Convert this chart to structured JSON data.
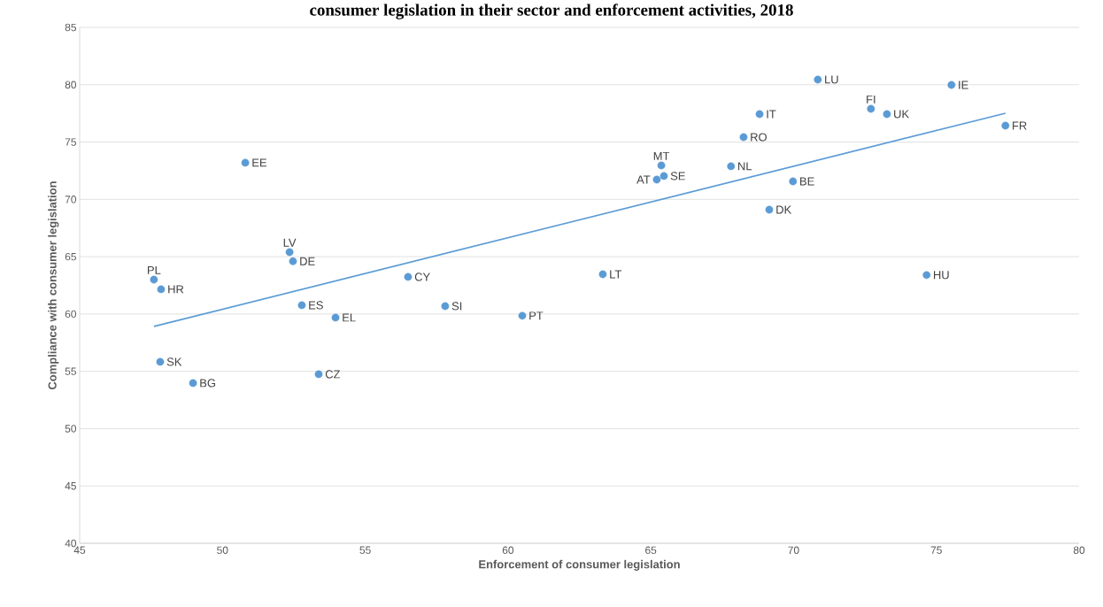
{
  "chart_data": {
    "type": "scatter",
    "title": "consumer legislation in their sector and enforcement activities, 2018",
    "xlabel": "Enforcement of consumer legislation",
    "ylabel": "Compliance with consumer legislation",
    "xlim": [
      45,
      80
    ],
    "xticks": [
      45,
      50,
      55,
      60,
      65,
      70,
      75,
      80
    ],
    "ylim": [
      40,
      85
    ],
    "yticks": [
      40,
      45,
      50,
      55,
      60,
      65,
      70,
      75,
      80,
      85
    ],
    "grid": "y",
    "series": [
      {
        "marker": "circle",
        "color": "#5b9bd5",
        "x": [
          50.8,
          70.85,
          75.53,
          72.71,
          73.27,
          68.81,
          77.42,
          68.25,
          65.37,
          65.46,
          65.21,
          67.81,
          69.98,
          69.15,
          52.35,
          52.47,
          47.6,
          47.85,
          56.5,
          63.32,
          74.66,
          52.78,
          53.96,
          57.8,
          60.5,
          47.82,
          53.37,
          48.97
        ],
        "values": [
          73.2,
          80.45,
          79.98,
          77.9,
          77.44,
          77.44,
          76.43,
          75.43,
          72.96,
          72.04,
          71.73,
          72.89,
          71.57,
          69.1,
          65.4,
          64.6,
          63.0,
          62.16,
          63.24,
          63.47,
          63.4,
          60.77,
          59.69,
          60.69,
          59.85,
          55.83,
          54.75,
          53.98
        ]
      },
      {
        "type": "line",
        "marker": "none",
        "color": "#5b9bd5",
        "x": [
          47.6,
          77.42
        ],
        "values": [
          58.92,
          77.52
        ]
      }
    ],
    "annotations": [
      {
        "text": "EE",
        "x": 50.8,
        "y": 73.2
      },
      {
        "text": "LU",
        "x": 70.85,
        "y": 80.45
      },
      {
        "text": "IE",
        "x": 75.53,
        "y": 79.98
      },
      {
        "text": "FI",
        "x": 72.71,
        "y": 77.9
      },
      {
        "text": "UK",
        "x": 73.27,
        "y": 77.44
      },
      {
        "text": "IT",
        "x": 68.81,
        "y": 77.44
      },
      {
        "text": "FR",
        "x": 77.42,
        "y": 76.43
      },
      {
        "text": "RO",
        "x": 68.25,
        "y": 75.43
      },
      {
        "text": "MT",
        "x": 65.37,
        "y": 72.96
      },
      {
        "text": "SE",
        "x": 65.46,
        "y": 72.04
      },
      {
        "text": "AT",
        "x": 65.21,
        "y": 71.73
      },
      {
        "text": "NL",
        "x": 67.81,
        "y": 72.89
      },
      {
        "text": "BE",
        "x": 69.98,
        "y": 71.57
      },
      {
        "text": "DK",
        "x": 69.15,
        "y": 69.1
      },
      {
        "text": "LV",
        "x": 52.35,
        "y": 65.4
      },
      {
        "text": "DE",
        "x": 52.47,
        "y": 64.6
      },
      {
        "text": "PL",
        "x": 47.6,
        "y": 63.0
      },
      {
        "text": "HR",
        "x": 47.85,
        "y": 62.16
      },
      {
        "text": "CY",
        "x": 56.5,
        "y": 63.24
      },
      {
        "text": "LT",
        "x": 63.32,
        "y": 63.47
      },
      {
        "text": "HU",
        "x": 74.66,
        "y": 63.4
      },
      {
        "text": "ES",
        "x": 52.78,
        "y": 60.77
      },
      {
        "text": "EL",
        "x": 53.96,
        "y": 59.69
      },
      {
        "text": "SI",
        "x": 57.8,
        "y": 60.69
      },
      {
        "text": "PT",
        "x": 60.5,
        "y": 59.85
      },
      {
        "text": "SK",
        "x": 47.82,
        "y": 55.83
      },
      {
        "text": "CZ",
        "x": 53.37,
        "y": 54.75
      },
      {
        "text": "BG",
        "x": 48.97,
        "y": 53.98
      }
    ]
  }
}
